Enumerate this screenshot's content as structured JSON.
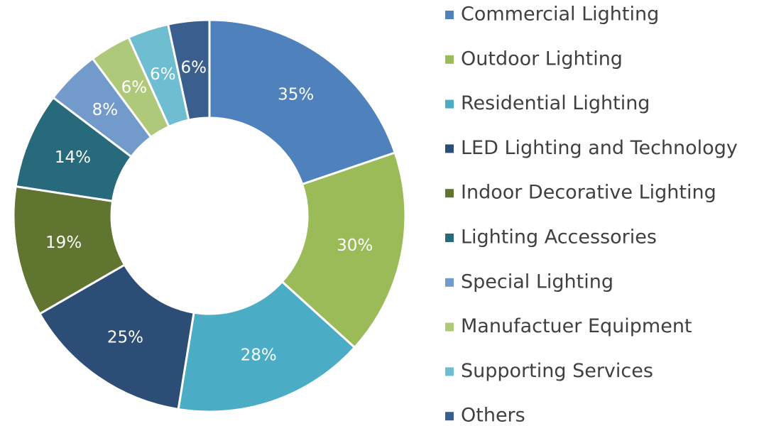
{
  "chart_data": {
    "type": "donut",
    "categories": [
      "Commercial Lighting",
      "Outdoor Lighting",
      "Residential Lighting",
      "LED Lighting and Technology",
      "Indoor Decorative Lighting",
      "Lighting Accessories",
      "Special Lighting",
      "Manufactuer Equipment",
      "Supporting Services",
      "Others"
    ],
    "values": [
      35,
      30,
      28,
      25,
      19,
      14,
      8,
      6,
      6,
      6
    ],
    "value_labels": [
      "35%",
      "30%",
      "28%",
      "25%",
      "19%",
      "14%",
      "8%",
      "6%",
      "6%",
      "6%"
    ],
    "colors": [
      "#4f81bd",
      "#9bbb59",
      "#4bacc6",
      "#2c4d75",
      "#5f7530",
      "#276a7c",
      "#729aca",
      "#afc97a",
      "#6fbdd1",
      "#3a5f8f"
    ],
    "legend": "right"
  }
}
